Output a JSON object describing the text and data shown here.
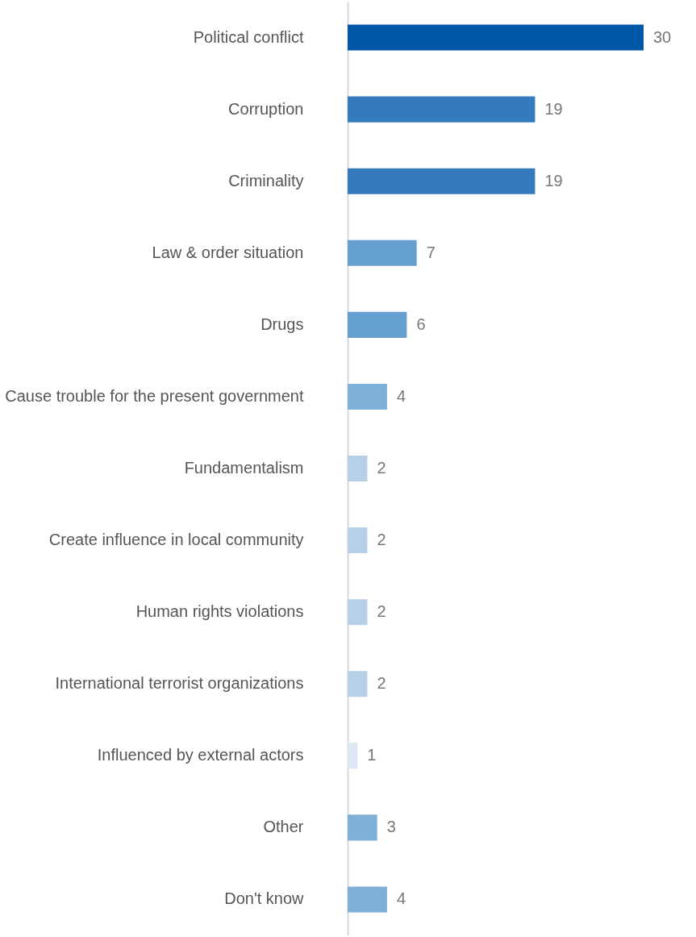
{
  "chart_data": {
    "type": "bar",
    "orientation": "horizontal",
    "data_labels": true,
    "categories": [
      "Political conflict",
      "Corruption",
      "Criminality",
      "Law & order situation",
      "Drugs",
      "Cause trouble for the present government",
      "Fundamentalism",
      "Create influence in local community",
      "Human rights violations",
      "International terrorist organizations",
      "Influenced by external actors",
      "Other",
      "Don't know"
    ],
    "values": [
      30,
      19,
      19,
      7,
      6,
      4,
      2,
      2,
      2,
      2,
      1,
      3,
      4
    ],
    "colors": [
      "#0057a8",
      "#347bbd",
      "#347bbd",
      "#659fcf",
      "#659fcf",
      "#7fb0d8",
      "#b6d0e8",
      "#b6d0e8",
      "#b6d0e8",
      "#b6d0e8",
      "#dce8f4",
      "#7fb0d8",
      "#7fb0d8"
    ],
    "grid": false
  }
}
